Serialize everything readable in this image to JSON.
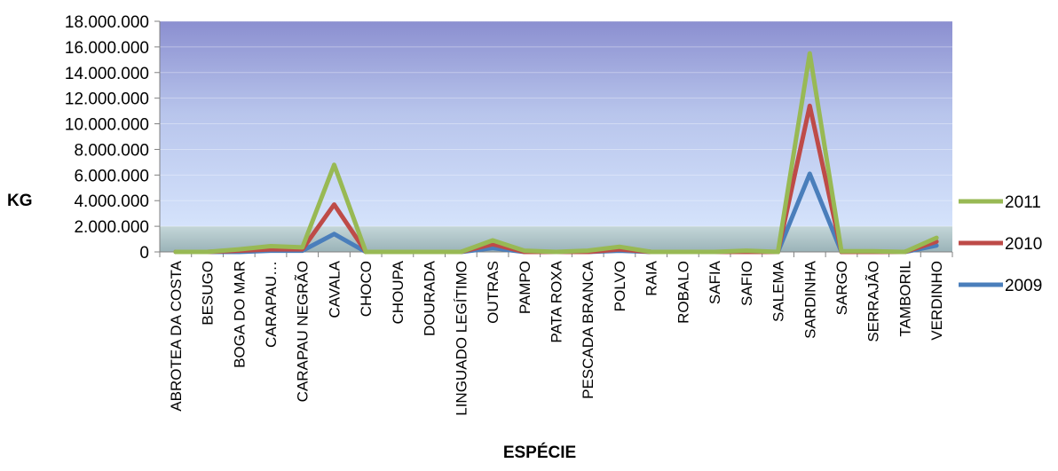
{
  "chart_data": {
    "type": "line",
    "title": "",
    "xlabel": "ESPÉCIE",
    "ylabel": "KG",
    "ylim": [
      0,
      18000000
    ],
    "y_ticks": [
      "18.000.000",
      "16.000.000",
      "14.000.000",
      "12.000.000",
      "10.000.000",
      "8.000.000",
      "6.000.000",
      "4.000.000",
      "2.000.000",
      "0"
    ],
    "categories": [
      "ABROTEA DA COSTA",
      "BESUGO",
      "BOGA DO MAR",
      "CARAPAU…",
      "CARAPAU NEGRÃO",
      "CAVALA",
      "CHOCO",
      "CHOUPA",
      "DOURADA",
      "LINGUADO LEGÍTIMO",
      "OUTRAS",
      "PAMPO",
      "PATA ROXA",
      "PESCADA BRANCA",
      "POLVO",
      "RAIA",
      "ROBALO",
      "SAFIA",
      "SAFIO",
      "SALEMA",
      "SARDINHA",
      "SARGO",
      "SERRAJÃO",
      "TAMBORIL",
      "VERDINHO"
    ],
    "series": [
      {
        "name": "2009",
        "color": "#4a7ebb",
        "values": [
          0,
          0,
          0,
          100000,
          100000,
          1400000,
          0,
          0,
          0,
          0,
          300000,
          0,
          0,
          0,
          100000,
          0,
          0,
          0,
          0,
          0,
          6100000,
          0,
          0,
          0,
          500000
        ]
      },
      {
        "name": "2010",
        "color": "#be4b48",
        "values": [
          0,
          0,
          100000,
          200000,
          200000,
          3700000,
          0,
          0,
          0,
          0,
          600000,
          0,
          0,
          0,
          200000,
          0,
          0,
          0,
          0,
          0,
          11400000,
          0,
          0,
          0,
          800000
        ]
      },
      {
        "name": "2011",
        "color": "#98b954",
        "values": [
          0,
          0,
          200000,
          450000,
          350000,
          6800000,
          0,
          0,
          0,
          0,
          900000,
          100000,
          0,
          100000,
          400000,
          0,
          0,
          0,
          100000,
          0,
          15500000,
          50000,
          50000,
          0,
          1100000
        ]
      }
    ],
    "legend_position": "right",
    "legend_order": [
      "2011",
      "2010",
      "2009"
    ],
    "grid": false
  }
}
